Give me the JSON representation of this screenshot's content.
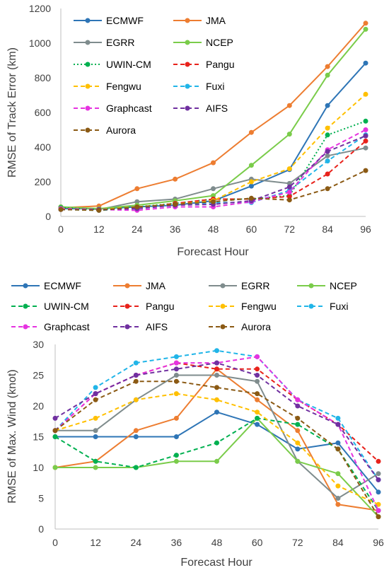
{
  "chart_data": [
    {
      "type": "line",
      "title": "",
      "xlabel": "Forecast Hour",
      "ylabel": "RMSE of Track Error (km)",
      "categories": [
        "0",
        "12",
        "24",
        "36",
        "48",
        "60",
        "72",
        "84",
        "96"
      ],
      "ylim": [
        0,
        1200
      ],
      "yticks": [
        "0",
        "200",
        "400",
        "600",
        "800",
        "1000",
        "1200"
      ],
      "grid": false,
      "legend_position": "inside-top-left",
      "series": [
        {
          "name": "ECMWF",
          "color": "#2e75b6",
          "style": "solid",
          "values": [
            45,
            45,
            55,
            65,
            90,
            175,
            270,
            640,
            885
          ]
        },
        {
          "name": "JMA",
          "color": "#ed7d31",
          "style": "solid",
          "values": [
            50,
            60,
            160,
            215,
            310,
            485,
            640,
            865,
            1115
          ]
        },
        {
          "name": "EGRR",
          "color": "#7f8c8d",
          "style": "solid",
          "values": [
            55,
            40,
            85,
            100,
            160,
            215,
            190,
            350,
            395
          ]
        },
        {
          "name": "NCEP",
          "color": "#7acc4a",
          "style": "solid",
          "values": [
            55,
            45,
            65,
            90,
            120,
            295,
            475,
            815,
            1080
          ]
        },
        {
          "name": "UWIN-CM",
          "color": "#00b050",
          "style": "dotted",
          "values": [
            50,
            40,
            55,
            75,
            100,
            100,
            120,
            470,
            550
          ]
        },
        {
          "name": "Pangu",
          "color": "#e8221b",
          "style": "dashed",
          "values": [
            45,
            40,
            50,
            75,
            100,
            100,
            115,
            245,
            435
          ]
        },
        {
          "name": "Fengwu",
          "color": "#ffc000",
          "style": "dashed",
          "values": [
            45,
            40,
            55,
            70,
            90,
            200,
            275,
            510,
            705
          ]
        },
        {
          "name": "Fuxi",
          "color": "#21b5e8",
          "style": "dashed",
          "values": [
            40,
            35,
            45,
            65,
            80,
            80,
            150,
            320,
            470
          ]
        },
        {
          "name": "Graphcast",
          "color": "#e633e0",
          "style": "dashed",
          "values": [
            45,
            40,
            35,
            55,
            55,
            85,
            140,
            385,
            500
          ]
        },
        {
          "name": "AIFS",
          "color": "#7030a0",
          "style": "dashed",
          "values": [
            40,
            40,
            45,
            65,
            70,
            90,
            170,
            375,
            465
          ]
        },
        {
          "name": "Aurora",
          "color": "#8b5a14",
          "style": "dashed",
          "values": [
            40,
            35,
            55,
            70,
            85,
            105,
            95,
            160,
            265
          ]
        }
      ]
    },
    {
      "type": "line",
      "title": "",
      "xlabel": "Forecast Hour",
      "ylabel": "RMSE of Max. Wind (knot)",
      "categories": [
        "0",
        "12",
        "24",
        "36",
        "48",
        "60",
        "72",
        "84",
        "96"
      ],
      "ylim": [
        0,
        30
      ],
      "yticks": [
        "0",
        "5",
        "10",
        "15",
        "20",
        "25",
        "30"
      ],
      "grid": false,
      "legend_position": "top",
      "series": [
        {
          "name": "ECMWF",
          "color": "#2e75b6",
          "style": "solid",
          "values": [
            15,
            15,
            15,
            15,
            19,
            17,
            13,
            14,
            6
          ]
        },
        {
          "name": "JMA",
          "color": "#ed7d31",
          "style": "solid",
          "values": [
            10,
            11,
            16,
            18,
            26,
            21,
            16,
            4,
            3
          ]
        },
        {
          "name": "EGRR",
          "color": "#7f8c8d",
          "style": "solid",
          "values": [
            16,
            16,
            21,
            25,
            25,
            24,
            11,
            5,
            9
          ]
        },
        {
          "name": "NCEP",
          "color": "#7acc4a",
          "style": "solid",
          "values": [
            10,
            10,
            10,
            11,
            11,
            18,
            11,
            9,
            2
          ]
        },
        {
          "name": "UWIN-CM",
          "color": "#00b050",
          "style": "dashed",
          "values": [
            15,
            11,
            10,
            12,
            14,
            18,
            17,
            13,
            3
          ]
        },
        {
          "name": "Pangu",
          "color": "#e8221b",
          "style": "dashed",
          "values": [
            16,
            22,
            25,
            27,
            26,
            26,
            21,
            17,
            11
          ]
        },
        {
          "name": "Fengwu",
          "color": "#ffc000",
          "style": "dashed",
          "values": [
            16,
            18,
            21,
            22,
            21,
            19,
            14,
            7,
            4
          ]
        },
        {
          "name": "Fuxi",
          "color": "#21b5e8",
          "style": "dashed",
          "values": [
            16,
            23,
            27,
            28,
            29,
            28,
            21,
            18,
            8
          ]
        },
        {
          "name": "Graphcast",
          "color": "#e633e0",
          "style": "dashed",
          "values": [
            16,
            22,
            25,
            27,
            27,
            28,
            21,
            17,
            3
          ]
        },
        {
          "name": "AIFS",
          "color": "#7030a0",
          "style": "dashed",
          "values": [
            18,
            22,
            25,
            26,
            27,
            25,
            20,
            17,
            8
          ]
        },
        {
          "name": "Aurora",
          "color": "#8b5a14",
          "style": "dashed",
          "values": [
            16,
            21,
            24,
            24,
            23,
            22,
            18,
            13,
            2
          ]
        }
      ]
    }
  ]
}
